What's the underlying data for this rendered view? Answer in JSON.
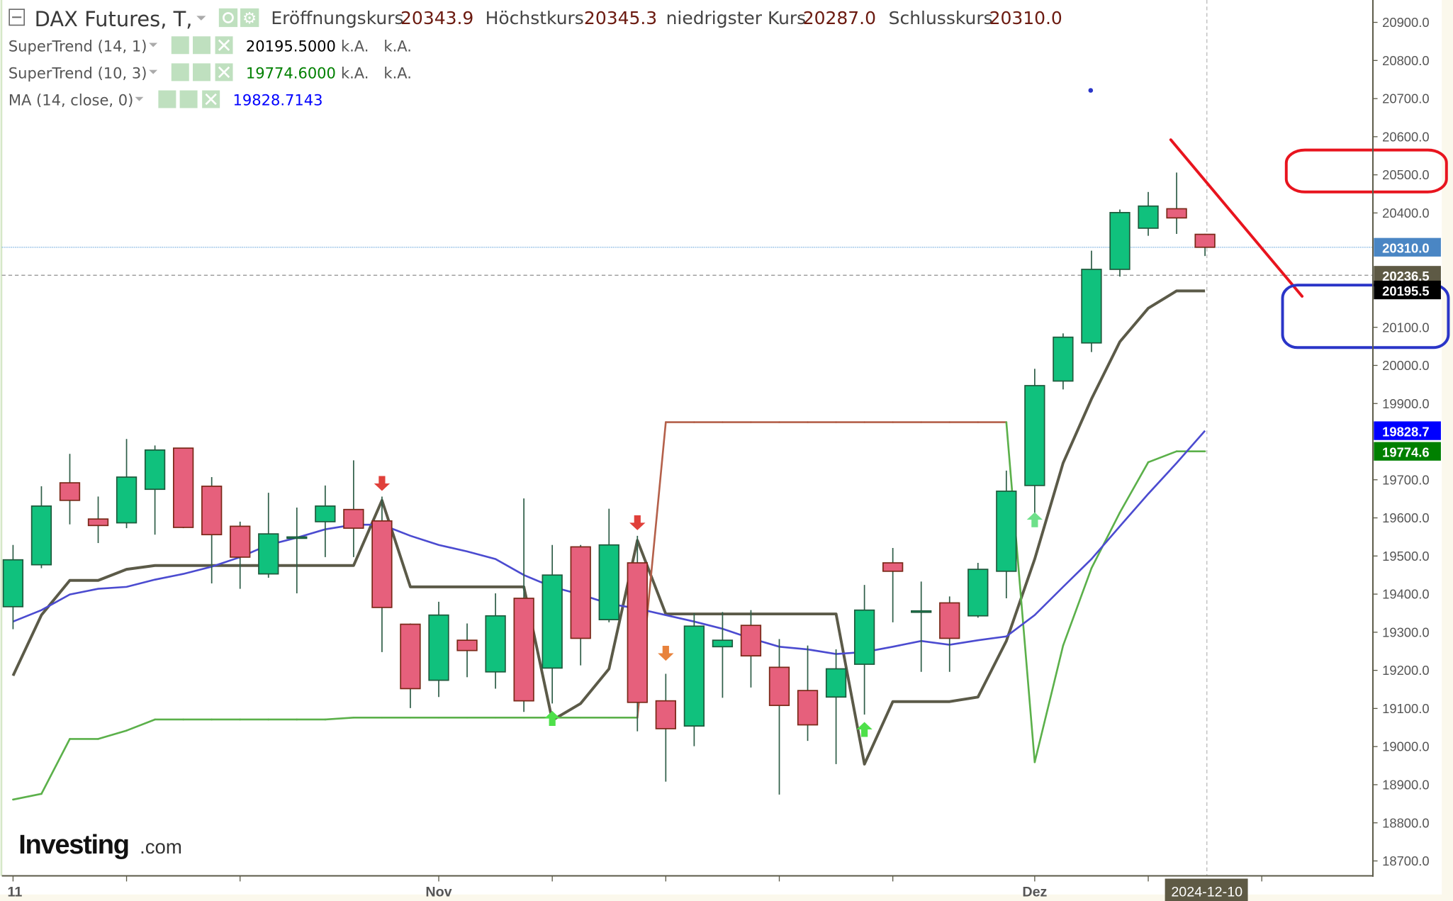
{
  "header": {
    "title": "DAX Futures, T,",
    "ohlc": [
      {
        "label": "Eröffnungskurs",
        "value": "20343.9"
      },
      {
        "label": "Höchstkurs",
        "value": "20345.3"
      },
      {
        "label": "niedrigster Kurs",
        "value": "20287.0"
      },
      {
        "label": "Schlusskurs",
        "value": "20310.0"
      }
    ]
  },
  "indicators": [
    {
      "name": "SuperTrend (14, 1)",
      "value": "20195.5000",
      "extra1": "k.A.",
      "extra2": "k.A.",
      "color": "#000000"
    },
    {
      "name": "SuperTrend (10, 3)",
      "value": "19774.6000",
      "extra1": "k.A.",
      "extra2": "k.A.",
      "color": "#008000"
    },
    {
      "name": "MA (14, close, 0)",
      "value": "19828.7143",
      "color": "#0000ff"
    }
  ],
  "logo": {
    "main": "Investing",
    "suffix": ".com"
  },
  "colors": {
    "up": "#10c17d",
    "up_border": "#1e5a3c",
    "down": "#e6607c",
    "down_border": "#7a2818",
    "supertrend_14": "#5b5a48",
    "supertrend_10_up": "#5bb04a",
    "supertrend_10_down": "#b4604a",
    "ma": "#4b4bd0",
    "annotation_red": "#e8141e",
    "annotation_blue": "#2a35c8"
  },
  "chart_data": {
    "type": "candlestick",
    "title": "DAX Futures, T",
    "ylim": [
      18650,
      20950
    ],
    "y_ticks": [
      "20900.0",
      "20800.0",
      "20700.0",
      "20600.0",
      "20500.0",
      "20400.0",
      "20100.0",
      "20000.0",
      "19900.0",
      "19700.0",
      "19600.0",
      "19500.0",
      "19400.0",
      "19300.0",
      "19200.0",
      "19100.0",
      "19000.0",
      "18900.0",
      "18800.0",
      "18700.0"
    ],
    "y_tick_values": [
      20900,
      20800,
      20700,
      20600,
      20500,
      20400,
      20100,
      20000,
      19900,
      19700,
      19600,
      19500,
      19400,
      19300,
      19200,
      19100,
      19000,
      18900,
      18800,
      18700
    ],
    "x_labels": [
      {
        "text": "11",
        "index": 0
      },
      {
        "text": "Nov",
        "index": 15
      },
      {
        "text": "Dez",
        "index": 36
      }
    ],
    "x_tick_indices": [
      0,
      4,
      8,
      15,
      19,
      23,
      27,
      31,
      36,
      40,
      44
    ],
    "current_date_label": {
      "text": "2024-12-10",
      "index": 42
    },
    "candles": [
      [
        19367,
        19529,
        19308,
        19490
      ],
      [
        19477,
        19683,
        19468,
        19631
      ],
      [
        19692,
        19768,
        19583,
        19646
      ],
      [
        19597,
        19656,
        19534,
        19580
      ],
      [
        19587,
        19807,
        19573,
        19707
      ],
      [
        19675,
        19790,
        19556,
        19778
      ],
      [
        19783,
        19783,
        19573,
        19575
      ],
      [
        19683,
        19707,
        19428,
        19556
      ],
      [
        19578,
        19590,
        19414,
        19497
      ],
      [
        19453,
        19666,
        19443,
        19558
      ],
      [
        19548,
        19627,
        19402,
        19550
      ],
      [
        19590,
        19685,
        19497,
        19631
      ],
      [
        19622,
        19751,
        19497,
        19573
      ],
      [
        19592,
        19656,
        19248,
        19365
      ],
      [
        19321,
        19323,
        19101,
        19152
      ],
      [
        19174,
        19380,
        19130,
        19345
      ],
      [
        19279,
        19323,
        19182,
        19252
      ],
      [
        19196,
        19402,
        19152,
        19343
      ],
      [
        19389,
        19651,
        19091,
        19120
      ],
      [
        19206,
        19529,
        19113,
        19450
      ],
      [
        19524,
        19529,
        19213,
        19284
      ],
      [
        19333,
        19624,
        19326,
        19529
      ],
      [
        19482,
        19553,
        19040,
        19116
      ],
      [
        19120,
        19191,
        18908,
        19047
      ],
      [
        19054,
        19350,
        19001,
        19316
      ],
      [
        19262,
        19353,
        19128,
        19279
      ],
      [
        19318,
        19358,
        19155,
        19238
      ],
      [
        19208,
        19282,
        18874,
        19108
      ],
      [
        19147,
        19265,
        19015,
        19057
      ],
      [
        19130,
        19255,
        18954,
        19204
      ],
      [
        19216,
        19424,
        19084,
        19358
      ],
      [
        19482,
        19521,
        19326,
        19460
      ],
      [
        19355,
        19433,
        19196,
        19356
      ],
      [
        19377,
        19394,
        19196,
        19284
      ],
      [
        19343,
        19482,
        19338,
        19465
      ],
      [
        19460,
        19724,
        19389,
        19670
      ],
      [
        19685,
        19991,
        19600,
        19947
      ],
      [
        19959,
        20084,
        19937,
        20074
      ],
      [
        20059,
        20301,
        20035,
        20252
      ],
      [
        20252,
        20409,
        20233,
        20401
      ],
      [
        20360,
        20455,
        20340,
        20418
      ],
      [
        20411,
        20506,
        20345,
        20387
      ],
      [
        20343.9,
        20345.3,
        20287.0,
        20310.0
      ]
    ],
    "series": [
      {
        "name": "SuperTrend (14, 1)",
        "values": [
          19186,
          19345,
          19436,
          19436,
          19465,
          19475,
          19475,
          19475,
          19475,
          19475,
          19475,
          19475,
          19475,
          19646,
          19419,
          19419,
          19419,
          19419,
          19419,
          19069,
          19113,
          19204,
          19541,
          19348,
          19348,
          19348,
          19348,
          19348,
          19348,
          19348,
          18954,
          19118,
          19118,
          19118,
          19130,
          19277,
          19492,
          19744,
          19912,
          20062,
          20150,
          20195.5,
          20195.5
        ]
      },
      {
        "name": "SuperTrend (10, 3)",
        "values": [
          18861,
          18876,
          19020,
          19020,
          19042,
          19071,
          19071,
          19071,
          19071,
          19071,
          19071,
          19071,
          19076,
          19076,
          19076,
          19076,
          19076,
          19076,
          19076,
          19076,
          19076,
          19076,
          19076,
          19851,
          19851,
          19851,
          19851,
          19851,
          19851,
          19851,
          19851,
          19851,
          19851,
          19851,
          19851,
          19851,
          18959,
          19265,
          19468,
          19614,
          19746,
          19774.6,
          19774.6
        ],
        "trend": [
          "up",
          "up",
          "up",
          "up",
          "up",
          "up",
          "up",
          "up",
          "up",
          "up",
          "up",
          "up",
          "up",
          "up",
          "up",
          "up",
          "up",
          "up",
          "up",
          "up",
          "up",
          "up",
          "up",
          "down",
          "down",
          "down",
          "down",
          "down",
          "down",
          "down",
          "down",
          "down",
          "down",
          "down",
          "down",
          "down",
          "up",
          "up",
          "up",
          "up",
          "up",
          "up",
          "up"
        ]
      },
      {
        "name": "MA (14, close, 0)",
        "values": [
          19328,
          19358,
          19399,
          19414,
          19419,
          19438,
          19453,
          19472,
          19497,
          19529,
          19548,
          19570,
          19582,
          19582,
          19553,
          19529,
          19512,
          19492,
          19450,
          19419,
          19399,
          19375,
          19362,
          19345,
          19328,
          19309,
          19284,
          19262,
          19255,
          19243,
          19248,
          19262,
          19277,
          19267,
          19279,
          19289,
          19345,
          19419,
          19492,
          19578,
          19663,
          19744,
          19828.7
        ]
      }
    ],
    "signals": [
      {
        "index": 13,
        "type": "sell",
        "color": "#e0403a"
      },
      {
        "index": 22,
        "type": "sell",
        "color": "#e0403a"
      },
      {
        "index": 23,
        "type": "sell",
        "color": "#e8823c"
      },
      {
        "index": 19,
        "type": "buy",
        "color": "#4ee04a"
      },
      {
        "index": 30,
        "type": "buy",
        "color": "#4ee04a"
      },
      {
        "index": 36,
        "type": "buy",
        "color": "#6ee08a"
      }
    ],
    "price_tags": [
      {
        "text": "20310.0",
        "value": 20310.0,
        "bg": "#4a86c4",
        "fg": "#ffffff"
      },
      {
        "text": "20236.5",
        "value": 20236.5,
        "bg": "#5e5a45",
        "fg": "#ffffff"
      },
      {
        "text": "20195.5",
        "value": 20195.5,
        "bg": "#000000",
        "fg": "#ffffff"
      },
      {
        "text": "19828.7",
        "value": 19828.7,
        "bg": "#0000ff",
        "fg": "#ffffff"
      },
      {
        "text": "19774.6",
        "value": 19774.6,
        "bg": "#008000",
        "fg": "#ffffff"
      }
    ],
    "last_price": 20310.0,
    "crosshair_price": 20236.5
  }
}
